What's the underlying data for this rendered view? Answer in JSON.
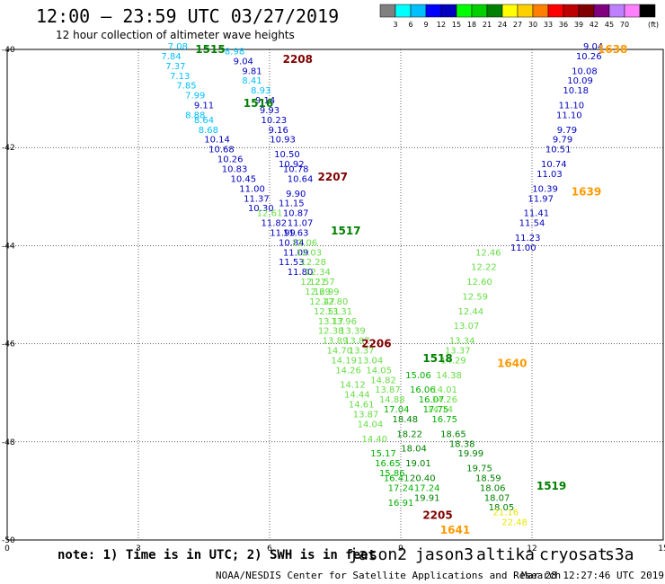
{
  "header": {
    "title": "12:00 — 23:59 UTC 03/27/2019",
    "subtitle": "12 hour collection of altimeter wave heights"
  },
  "legend": {
    "unit": "(ft)",
    "labels": [
      "3",
      "6",
      "9",
      "12",
      "15",
      "18",
      "21",
      "24",
      "27",
      "30",
      "33",
      "36",
      "39",
      "42",
      "45",
      "70"
    ],
    "colors": [
      "#808080",
      "#00ffff",
      "#00bfff",
      "#0000ff",
      "#0000bf",
      "#00ff00",
      "#00d000",
      "#008000",
      "#ffff00",
      "#ffd000",
      "#ff8000",
      "#ff0000",
      "#bf0000",
      "#800000",
      "#800080",
      "#bf80ff",
      "#ff80ff",
      "#000000"
    ]
  },
  "footer": {
    "note": "note: 1) Time is in UTC; 2) SWH is in feet",
    "credit": "NOAA/NESDIS Center for Satellite Applications and Research",
    "timestamp": "Mar 28 12:27:46 UTC 2019"
  },
  "satellites": [
    {
      "name": "jason2",
      "color": "#0000ff"
    },
    {
      "name": "jason3",
      "color": "#008000"
    },
    {
      "name": "altika",
      "color": "#ff9900"
    },
    {
      "name": "cryosat",
      "color": "#ff0000"
    },
    {
      "name": "s3a",
      "color": "#800000"
    }
  ],
  "chart_data": {
    "type": "scatter",
    "title": "",
    "xlabel": "",
    "ylabel": "",
    "xlim": [
      0,
      15
    ],
    "ylim": [
      -50,
      -40
    ],
    "xticks": [
      "0",
      "3",
      "6",
      "9",
      "12",
      "15"
    ],
    "yticks": [
      "-40",
      "-42",
      "-44",
      "-46",
      "-48",
      "-50"
    ],
    "pass_labels": [
      {
        "label": "1515",
        "x": 4.3,
        "y": -40.0,
        "color": "#008000"
      },
      {
        "label": "2208",
        "x": 6.3,
        "y": -40.2,
        "color": "#800000"
      },
      {
        "label": "1516",
        "x": 5.4,
        "y": -41.1,
        "color": "#008000"
      },
      {
        "label": "2207",
        "x": 7.1,
        "y": -42.6,
        "color": "#800000"
      },
      {
        "label": "1517",
        "x": 7.4,
        "y": -43.7,
        "color": "#008000"
      },
      {
        "label": "2206",
        "x": 8.1,
        "y": -46.0,
        "color": "#800000"
      },
      {
        "label": "1518",
        "x": 9.5,
        "y": -46.3,
        "color": "#008000"
      },
      {
        "label": "1640",
        "x": 11.2,
        "y": -46.4,
        "color": "#ff9900"
      },
      {
        "label": "2205",
        "x": 9.5,
        "y": -49.5,
        "color": "#800000"
      },
      {
        "label": "1641",
        "x": 9.9,
        "y": -49.8,
        "color": "#ff9900"
      },
      {
        "label": "1638",
        "x": 13.5,
        "y": -40.0,
        "color": "#ff9900"
      },
      {
        "label": "1639",
        "x": 12.9,
        "y": -42.9,
        "color": "#ff9900"
      },
      {
        "label": "1519",
        "x": 12.1,
        "y": -48.9,
        "color": "#008000"
      }
    ],
    "series": [
      {
        "name": "1515 (jason3)",
        "color_by_value": true,
        "points": [
          [
            3.9,
            -40.0,
            "7.08"
          ],
          [
            3.75,
            -40.2,
            "7.84"
          ],
          [
            3.85,
            -40.4,
            "7.37"
          ],
          [
            3.95,
            -40.6,
            "7.13"
          ],
          [
            4.1,
            -40.8,
            "7.85"
          ],
          [
            4.3,
            -41.0,
            "7.99"
          ],
          [
            4.5,
            -41.2,
            "9.11"
          ],
          [
            4.3,
            -41.4,
            "8.88"
          ],
          [
            4.5,
            -41.5,
            "8.64"
          ],
          [
            4.6,
            -41.7,
            "8.68"
          ],
          [
            4.8,
            -41.9,
            "10.14"
          ],
          [
            4.9,
            -42.1,
            "10.68"
          ],
          [
            5.1,
            -42.3,
            "10.26"
          ],
          [
            5.2,
            -42.5,
            "10.83"
          ],
          [
            5.4,
            -42.7,
            "10.45"
          ],
          [
            5.6,
            -42.9,
            "11.00"
          ],
          [
            5.7,
            -43.1,
            "11.37"
          ],
          [
            5.8,
            -43.3,
            "10.30"
          ],
          [
            6.0,
            -43.4,
            "12.61"
          ],
          [
            6.1,
            -43.6,
            "11.82"
          ],
          [
            6.3,
            -43.8,
            "11.99"
          ],
          [
            6.5,
            -44.0,
            "10.84"
          ],
          [
            6.6,
            -44.2,
            "11.09"
          ],
          [
            6.5,
            -44.4,
            "11.53"
          ],
          [
            6.7,
            -44.6,
            "11.80"
          ],
          [
            7.0,
            -44.8,
            "12.21"
          ],
          [
            7.1,
            -45.0,
            "12.69"
          ],
          [
            7.2,
            -45.2,
            "12.47"
          ],
          [
            7.3,
            -45.4,
            "12.51"
          ],
          [
            7.4,
            -45.6,
            "13.17"
          ],
          [
            7.4,
            -45.8,
            "12.38"
          ],
          [
            7.5,
            -46.0,
            "13.89"
          ],
          [
            7.6,
            -46.2,
            "14.70"
          ],
          [
            7.7,
            -46.4,
            "14.19"
          ],
          [
            7.8,
            -46.6,
            "14.26"
          ],
          [
            7.9,
            -46.9,
            "14.12"
          ],
          [
            8.0,
            -47.1,
            "14.44"
          ],
          [
            8.1,
            -47.3,
            "14.61"
          ],
          [
            8.2,
            -47.5,
            "13.87"
          ],
          [
            8.3,
            -47.7,
            "14.04"
          ],
          [
            8.4,
            -48.0,
            "14.40"
          ],
          [
            8.6,
            -48.3,
            "15.17"
          ],
          [
            8.7,
            -48.5,
            "16.65"
          ],
          [
            8.8,
            -48.7,
            "15.86"
          ],
          [
            8.9,
            -48.8,
            "16.41"
          ],
          [
            9.0,
            -49.0,
            "17.24"
          ],
          [
            9.0,
            -49.3,
            "16.91"
          ]
        ]
      },
      {
        "name": "2208 (s3a)",
        "color_by_value": true,
        "points": [
          [
            5.2,
            -40.1,
            "8.98"
          ],
          [
            5.4,
            -40.3,
            "9.04"
          ],
          [
            5.6,
            -40.5,
            "9.81"
          ],
          [
            5.6,
            -40.7,
            "8.41"
          ],
          [
            5.8,
            -40.9,
            "8.93"
          ],
          [
            5.9,
            -41.1,
            "9.14"
          ],
          [
            6.0,
            -41.3,
            "9.93"
          ],
          [
            6.1,
            -41.5,
            "10.23"
          ],
          [
            6.2,
            -41.7,
            "9.16"
          ],
          [
            6.3,
            -41.9,
            "10.93"
          ],
          [
            6.4,
            -42.2,
            "10.50"
          ],
          [
            6.5,
            -42.4,
            "10.92"
          ],
          [
            6.6,
            -42.5,
            "10.78"
          ],
          [
            6.7,
            -42.7,
            "10.64"
          ],
          [
            6.6,
            -43.0,
            "9.90"
          ],
          [
            6.5,
            -43.2,
            "11.15"
          ],
          [
            6.6,
            -43.4,
            "10.87"
          ],
          [
            6.7,
            -43.6,
            "11.07"
          ],
          [
            6.6,
            -43.8,
            "11.63"
          ],
          [
            6.8,
            -44.0,
            "12.06"
          ],
          [
            6.9,
            -44.2,
            "12.03"
          ],
          [
            7.0,
            -44.4,
            "12.28"
          ],
          [
            7.1,
            -44.6,
            "12.34"
          ],
          [
            7.2,
            -44.8,
            "12.57"
          ],
          [
            7.3,
            -45.0,
            "12.99"
          ],
          [
            7.5,
            -45.2,
            "12.80"
          ],
          [
            7.6,
            -45.4,
            "13.31"
          ],
          [
            7.7,
            -45.6,
            "13.96"
          ],
          [
            7.9,
            -45.8,
            "13.39"
          ],
          [
            8.0,
            -46.0,
            "13.87"
          ],
          [
            8.1,
            -46.2,
            "13.37"
          ],
          [
            8.3,
            -46.4,
            "13.04"
          ],
          [
            8.5,
            -46.6,
            "14.05"
          ],
          [
            8.6,
            -46.8,
            "14.82"
          ],
          [
            8.7,
            -47.0,
            "13.87"
          ],
          [
            8.8,
            -47.2,
            "14.88"
          ],
          [
            8.9,
            -47.4,
            "17.04"
          ],
          [
            9.1,
            -47.6,
            "18.48"
          ],
          [
            9.2,
            -47.9,
            "18.22"
          ],
          [
            9.3,
            -48.2,
            "18.04"
          ],
          [
            9.4,
            -48.5,
            "19.01"
          ],
          [
            9.5,
            -48.8,
            "20.40"
          ],
          [
            9.6,
            -49.0,
            "17.24"
          ],
          [
            9.6,
            -49.2,
            "19.91"
          ]
        ]
      },
      {
        "name": "1518 (jason3)",
        "color_by_value": true,
        "points": [
          [
            9.4,
            -46.7,
            "15.06"
          ],
          [
            9.5,
            -47.0,
            "16.06"
          ],
          [
            9.7,
            -47.2,
            "16.07"
          ],
          [
            9.8,
            -47.4,
            "17.75"
          ],
          [
            10.0,
            -47.6,
            "16.75"
          ],
          [
            10.2,
            -47.9,
            "18.65"
          ],
          [
            10.4,
            -48.1,
            "18.38"
          ],
          [
            10.6,
            -48.3,
            "19.99"
          ],
          [
            10.8,
            -48.6,
            "19.75"
          ],
          [
            11.0,
            -48.8,
            "18.59"
          ],
          [
            11.1,
            -49.0,
            "18.06"
          ],
          [
            11.2,
            -49.2,
            "18.07"
          ],
          [
            11.3,
            -49.4,
            "18.05"
          ],
          [
            11.4,
            -49.5,
            "21.16"
          ],
          [
            11.6,
            -49.7,
            "22.48"
          ]
        ]
      },
      {
        "name": "1640 (altika)",
        "color_by_value": true,
        "points": [
          [
            11.0,
            -44.2,
            "12.46"
          ],
          [
            10.9,
            -44.5,
            "12.22"
          ],
          [
            10.8,
            -44.8,
            "12.60"
          ],
          [
            10.7,
            -45.1,
            "12.59"
          ],
          [
            10.6,
            -45.4,
            "12.44"
          ],
          [
            10.5,
            -45.7,
            "13.07"
          ],
          [
            10.4,
            -46.0,
            "13.34"
          ],
          [
            10.3,
            -46.2,
            "13.37"
          ],
          [
            10.2,
            -46.4,
            "14.29"
          ],
          [
            10.1,
            -46.7,
            "14.38"
          ],
          [
            10.0,
            -47.0,
            "14.01"
          ],
          [
            10.0,
            -47.2,
            "14.26"
          ],
          [
            9.9,
            -47.4,
            "14.74"
          ]
        ]
      },
      {
        "name": "1638 (altika)",
        "color_by_value": true,
        "points": [
          [
            13.4,
            -40.0,
            "9.04"
          ],
          [
            13.3,
            -40.2,
            "10.26"
          ],
          [
            13.2,
            -40.5,
            "10.08"
          ],
          [
            13.1,
            -40.7,
            "10.09"
          ],
          [
            13.0,
            -40.9,
            "10.18"
          ],
          [
            12.9,
            -41.2,
            "11.10"
          ],
          [
            12.85,
            -41.4,
            "11.10"
          ],
          [
            12.8,
            -41.7,
            "9.79"
          ],
          [
            12.7,
            -41.9,
            "9.79"
          ],
          [
            12.6,
            -42.1,
            "10.51"
          ],
          [
            12.5,
            -42.4,
            "10.74"
          ],
          [
            12.4,
            -42.6,
            "11.03"
          ],
          [
            12.3,
            -42.9,
            "10.39"
          ],
          [
            12.2,
            -43.1,
            "11.97"
          ],
          [
            12.1,
            -43.4,
            "11.41"
          ],
          [
            12.0,
            -43.6,
            "11.54"
          ],
          [
            11.9,
            -43.9,
            "11.23"
          ],
          [
            11.8,
            -44.1,
            "11.00"
          ]
        ]
      }
    ]
  }
}
